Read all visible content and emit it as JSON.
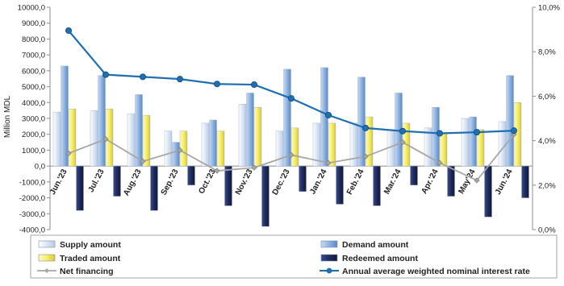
{
  "chart_data": {
    "type": "bar",
    "categories": [
      "Jun.'23",
      "Jul.'23",
      "Aug.'23",
      "Sep.'23",
      "Oct.'23",
      "Nov.'23",
      "Dec.'23",
      "Jan.'24",
      "Feb.'24",
      "Mar.'24",
      "Apr.'24",
      "May'24",
      "Jun.'24"
    ],
    "ylabel": "Million MDL",
    "ylim": [
      -4000,
      10000
    ],
    "y2lim": [
      0,
      10
    ],
    "yticks": [
      "-4000,0",
      "-3000,0",
      "-2000,0",
      "-1000,0",
      "0,0",
      "1000,0",
      "2000,0",
      "3000,0",
      "4000,0",
      "5000,0",
      "6000,0",
      "7000,0",
      "8000,0",
      "9000,0",
      "10000,0"
    ],
    "y2ticks": [
      "0,0%",
      "2,0%",
      "4,0%",
      "6,0%",
      "8,0%",
      "10,0%"
    ],
    "grid": false,
    "legend_position": "bottom",
    "series": [
      {
        "name": "Supply amount",
        "kind": "bar",
        "axis": "left",
        "color": "#e4ecf7",
        "values": [
          3400,
          3500,
          3300,
          2200,
          2700,
          3900,
          2200,
          2700,
          2700,
          2300,
          2400,
          3000,
          2800
        ]
      },
      {
        "name": "Demand amount",
        "kind": "bar",
        "axis": "left",
        "color": "#8db3e2",
        "values": [
          6300,
          5700,
          4500,
          1500,
          2900,
          4600,
          6100,
          6200,
          5600,
          4600,
          3700,
          3100,
          5700
        ]
      },
      {
        "name": "Traded amount",
        "kind": "bar",
        "axis": "left",
        "color": "#f7ee6a",
        "values": [
          3600,
          3600,
          3200,
          2200,
          2200,
          3700,
          2400,
          2700,
          3100,
          2700,
          2100,
          2300,
          4000
        ]
      },
      {
        "name": "Redeemed amount",
        "kind": "bar",
        "axis": "left",
        "color": "#1f2a5c",
        "values": [
          -2800,
          -1900,
          -2800,
          -1200,
          -2500,
          -3800,
          -1600,
          -2400,
          -2500,
          -1200,
          -1900,
          -3200,
          -2000
        ]
      },
      {
        "name": "Net financing",
        "kind": "line",
        "axis": "left",
        "color": "#a6a6a6",
        "values": [
          800,
          1700,
          300,
          1000,
          -300,
          -100,
          700,
          200,
          600,
          1500,
          200,
          -900,
          2000
        ]
      },
      {
        "name": "Annual average weighted nominal interest rate",
        "kind": "line",
        "axis": "right",
        "color": "#1f6fb2",
        "values": [
          8.95,
          6.97,
          6.87,
          6.77,
          6.55,
          6.52,
          5.9,
          5.15,
          4.57,
          4.43,
          4.33,
          4.38,
          4.45
        ]
      }
    ]
  }
}
